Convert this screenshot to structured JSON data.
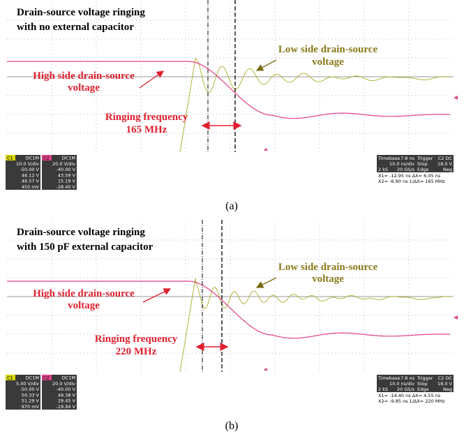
{
  "panels": [
    {
      "title": [
        "Drain-source voltage ringing",
        "with no external capacitor"
      ],
      "high_side_label": [
        "High side drain-source",
        "voltage"
      ],
      "low_side_label": [
        "Low side drain-source",
        "voltage"
      ],
      "ringing_label": [
        "Ringing frequency",
        "165 MHz"
      ],
      "readout": {
        "c1": {
          "name": "C1",
          "coupling": "DC1M",
          "lines": [
            "10.0 V/div",
            "-50.00 V",
            "46.12 V",
            "46.57 V",
            "450 mV"
          ]
        },
        "c2": {
          "name": "C2",
          "coupling": "DC1M",
          "lines": [
            "20.0 V/div",
            "-40.00 V",
            "43.59 V",
            "15.19 V",
            "-28.40 V"
          ]
        },
        "timebase": {
          "lines": [
            [
              "Timebase",
              "7.8 ns",
              "Trigger",
              "C2 DC"
            ],
            [
              "",
              "10.0 ns/div",
              "Stop",
              "18.0 V"
            ],
            [
              "2 kS",
              "20 GS/s",
              "Edge",
              "Neg"
            ]
          ]
        },
        "cursors": [
          "X1= -12.95 ns  ΔX= 6.05 ns",
          "X2= -6.90 ns  1/ΔX= 165 MHz"
        ]
      },
      "caption": "(a)"
    },
    {
      "title": [
        "Drain-source voltage ringing",
        "with 150 pF external capacitor"
      ],
      "high_side_label": [
        "High side drain-source",
        "voltage"
      ],
      "low_side_label": [
        "Low side drain-source",
        "voltage"
      ],
      "ringing_label": [
        "Ringing frequency",
        "220 MHz"
      ],
      "readout": {
        "c1": {
          "name": "C1",
          "coupling": "DC1M",
          "lines": [
            "5.00 V/div",
            "-50.00 V",
            "50.33 V",
            "51.29 V",
            "970 mV"
          ]
        },
        "c2": {
          "name": "C2",
          "coupling": "DC1M",
          "lines": [
            "20.0 V/div",
            "-40.00 V",
            "49.38 V",
            "29.45 V",
            "-19.94 V"
          ]
        },
        "timebase": {
          "lines": [
            [
              "Timebase",
              "7.8 ns",
              "Trigger",
              "C2 DC"
            ],
            [
              "",
              "10.0 ns/div",
              "Stop",
              "18.0 V"
            ],
            [
              "2 kS",
              "20 GS/s",
              "Edge",
              "Neg"
            ]
          ]
        },
        "cursors": [
          "X1= -14.40 ns  ΔX= 4.55 ns",
          "X2= -9.85 ns  1/ΔX= 220 MHz"
        ]
      },
      "caption": "(b)"
    }
  ]
}
